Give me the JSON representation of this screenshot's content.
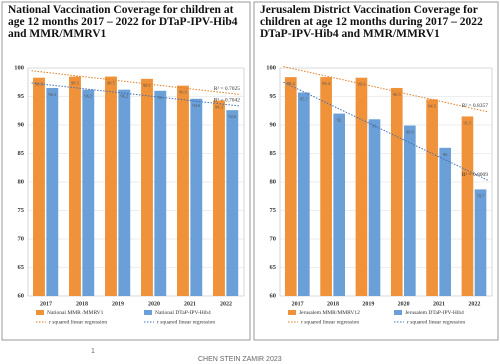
{
  "chart_data": [
    {
      "type": "bar",
      "title": "National Vaccination Coverage for children at age 12 months 2017 – 2022 for DTaP-IPV-Hib4 and MMR/MMRV1",
      "categories": [
        "2017",
        "2018",
        "2019",
        "2020",
        "2021",
        "2022"
      ],
      "series": [
        {
          "name": "National MMR /MMRV1",
          "color": "#f0923a",
          "values": [
            98.3,
            98.5,
            98.5,
            98.1,
            96.9,
            94.3
          ],
          "trendline": {
            "name": "r squared linear regression",
            "color": "#e07b20",
            "label": "R² = 0.7025"
          }
        },
        {
          "name": "National DTaP-IPV-Hib4",
          "color": "#6a9fd8",
          "values": [
            96.5,
            96.2,
            96.2,
            96.0,
            94.6,
            92.6
          ],
          "trendline": {
            "name": "r squared linear regression",
            "color": "#3d6fb6",
            "label": "R² = 0.7042"
          }
        }
      ],
      "ylim": [
        60,
        100
      ],
      "yticks": [
        60,
        65,
        70,
        75,
        80,
        85,
        90,
        95,
        100
      ],
      "grid": true
    },
    {
      "type": "bar",
      "title": "Jerusalem District Vaccination Coverage for children at age 12 months during 2017 – 2022 DTaP-IPV-Hib4 and MMR/MMRV1",
      "categories": [
        "2017",
        "2018",
        "2019",
        "2020",
        "2021",
        "2022"
      ],
      "series": [
        {
          "name": "Jerusalem MMR/MMRV12",
          "color": "#f0923a",
          "values": [
            98.4,
            98.4,
            98.3,
            96.5,
            94.5,
            91.5
          ],
          "trendline": {
            "name": "r squared linear regression",
            "color": "#e07b20",
            "label": "R² = 0.8357"
          }
        },
        {
          "name": "Jerusalem DTaP-IPV-Hib4",
          "color": "#6a9fd8",
          "values": [
            95.7,
            92.0,
            91.0,
            89.9,
            86.0,
            78.7
          ],
          "trendline": {
            "name": "r squared linear regression",
            "color": "#3d6fb6",
            "label": "R² = 0.8009"
          }
        }
      ],
      "ylim": [
        60,
        100
      ],
      "yticks": [
        60,
        65,
        70,
        75,
        80,
        85,
        90,
        95,
        100
      ],
      "grid": true
    }
  ],
  "page_number": "1",
  "footer": "CHEN STEIN ZAMIR 2023"
}
